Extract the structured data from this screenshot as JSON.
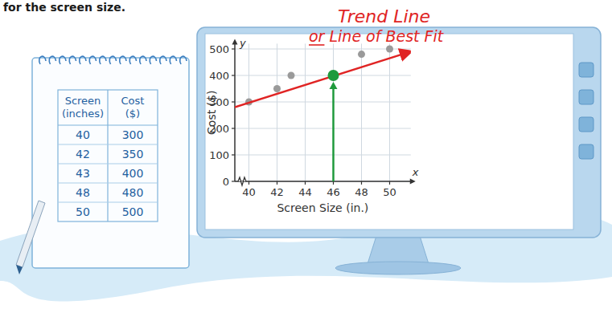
{
  "caption": "for the screen size.",
  "table": {
    "headers": [
      "Screen (inches)",
      "Cost ($)"
    ],
    "rows": [
      [
        40,
        300
      ],
      [
        42,
        350
      ],
      [
        43,
        400
      ],
      [
        48,
        480
      ],
      [
        50,
        500
      ]
    ]
  },
  "chart_data": {
    "type": "scatter",
    "x_label": "Screen Size (in.)",
    "y_label": "Cost ($)",
    "x_axis_symbol": "x",
    "y_axis_symbol": "y",
    "x": [
      40,
      42,
      43,
      48,
      50
    ],
    "values": [
      300,
      350,
      400,
      480,
      500
    ],
    "color": "#9a9a9a",
    "xlim": [
      39,
      51.5
    ],
    "ylim": [
      0,
      520
    ],
    "xticks": [
      40,
      42,
      44,
      46,
      48,
      50
    ],
    "yticks": [
      0,
      100,
      200,
      300,
      400,
      500
    ],
    "grid": true,
    "trend_line": {
      "x": [
        39,
        51.5
      ],
      "values": [
        280,
        490
      ],
      "color": "#e02424"
    },
    "highlight": {
      "x": 46,
      "value": 400,
      "color": "#1f9a3c"
    },
    "annotations": [
      "Trend Line",
      "or Line of Best Fit"
    ]
  }
}
